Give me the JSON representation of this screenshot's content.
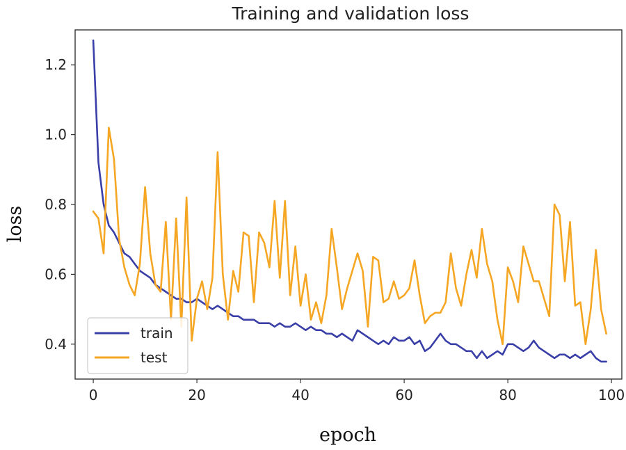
{
  "chart_data": {
    "type": "line",
    "title": "Training and validation loss",
    "xlabel": "epoch",
    "ylabel": "loss",
    "xlim": [
      -3.5,
      102
    ],
    "ylim": [
      0.3,
      1.3
    ],
    "xticks": [
      0,
      20,
      40,
      60,
      80,
      100
    ],
    "xtick_labels": [
      "0",
      "20",
      "40",
      "60",
      "80",
      "100"
    ],
    "yticks": [
      0.4,
      0.6,
      0.8,
      1.0,
      1.2
    ],
    "ytick_labels": [
      "0.4",
      "0.6",
      "0.8",
      "1.0",
      "1.2"
    ],
    "grid": false,
    "legend_position": "lower-left",
    "x": [
      0,
      1,
      2,
      3,
      4,
      5,
      6,
      7,
      8,
      9,
      10,
      11,
      12,
      13,
      14,
      15,
      16,
      17,
      18,
      19,
      20,
      21,
      22,
      23,
      24,
      25,
      26,
      27,
      28,
      29,
      30,
      31,
      32,
      33,
      34,
      35,
      36,
      37,
      38,
      39,
      40,
      41,
      42,
      43,
      44,
      45,
      46,
      47,
      48,
      49,
      50,
      51,
      52,
      53,
      54,
      55,
      56,
      57,
      58,
      59,
      60,
      61,
      62,
      63,
      64,
      65,
      66,
      67,
      68,
      69,
      70,
      71,
      72,
      73,
      74,
      75,
      76,
      77,
      78,
      79,
      80,
      81,
      82,
      83,
      84,
      85,
      86,
      87,
      88,
      89,
      90,
      91,
      92,
      93,
      94,
      95,
      96,
      97,
      98,
      99
    ],
    "series": [
      {
        "name": "train",
        "color": "#3a3fa8",
        "values": [
          1.27,
          0.92,
          0.8,
          0.74,
          0.72,
          0.69,
          0.66,
          0.65,
          0.63,
          0.61,
          0.6,
          0.59,
          0.57,
          0.56,
          0.55,
          0.54,
          0.53,
          0.53,
          0.52,
          0.52,
          0.53,
          0.52,
          0.51,
          0.5,
          0.51,
          0.5,
          0.49,
          0.48,
          0.48,
          0.47,
          0.47,
          0.47,
          0.46,
          0.46,
          0.46,
          0.45,
          0.46,
          0.45,
          0.45,
          0.46,
          0.45,
          0.44,
          0.45,
          0.44,
          0.44,
          0.43,
          0.43,
          0.42,
          0.43,
          0.42,
          0.41,
          0.44,
          0.43,
          0.42,
          0.41,
          0.4,
          0.41,
          0.4,
          0.42,
          0.41,
          0.41,
          0.42,
          0.4,
          0.41,
          0.38,
          0.39,
          0.41,
          0.43,
          0.41,
          0.4,
          0.4,
          0.39,
          0.38,
          0.38,
          0.36,
          0.38,
          0.36,
          0.37,
          0.38,
          0.37,
          0.4,
          0.4,
          0.39,
          0.38,
          0.39,
          0.41,
          0.39,
          0.38,
          0.37,
          0.36,
          0.37,
          0.37,
          0.36,
          0.37,
          0.36,
          0.37,
          0.38,
          0.36,
          0.35,
          0.35
        ]
      },
      {
        "name": "test",
        "color": "#f5a623",
        "values": [
          0.78,
          0.76,
          0.66,
          1.02,
          0.93,
          0.7,
          0.62,
          0.57,
          0.54,
          0.63,
          0.85,
          0.66,
          0.57,
          0.55,
          0.75,
          0.47,
          0.76,
          0.45,
          0.82,
          0.41,
          0.53,
          0.58,
          0.5,
          0.59,
          0.95,
          0.6,
          0.47,
          0.61,
          0.55,
          0.72,
          0.71,
          0.52,
          0.72,
          0.69,
          0.62,
          0.81,
          0.59,
          0.81,
          0.54,
          0.68,
          0.51,
          0.6,
          0.47,
          0.52,
          0.46,
          0.54,
          0.73,
          0.62,
          0.5,
          0.56,
          0.61,
          0.66,
          0.61,
          0.45,
          0.65,
          0.64,
          0.52,
          0.53,
          0.58,
          0.53,
          0.54,
          0.56,
          0.64,
          0.54,
          0.46,
          0.48,
          0.49,
          0.49,
          0.52,
          0.66,
          0.56,
          0.51,
          0.6,
          0.67,
          0.59,
          0.73,
          0.63,
          0.58,
          0.47,
          0.4,
          0.62,
          0.58,
          0.52,
          0.68,
          0.63,
          0.58,
          0.58,
          0.53,
          0.48,
          0.8,
          0.77,
          0.58,
          0.75,
          0.51,
          0.52,
          0.4,
          0.5,
          0.67,
          0.5,
          0.43
        ]
      }
    ]
  }
}
